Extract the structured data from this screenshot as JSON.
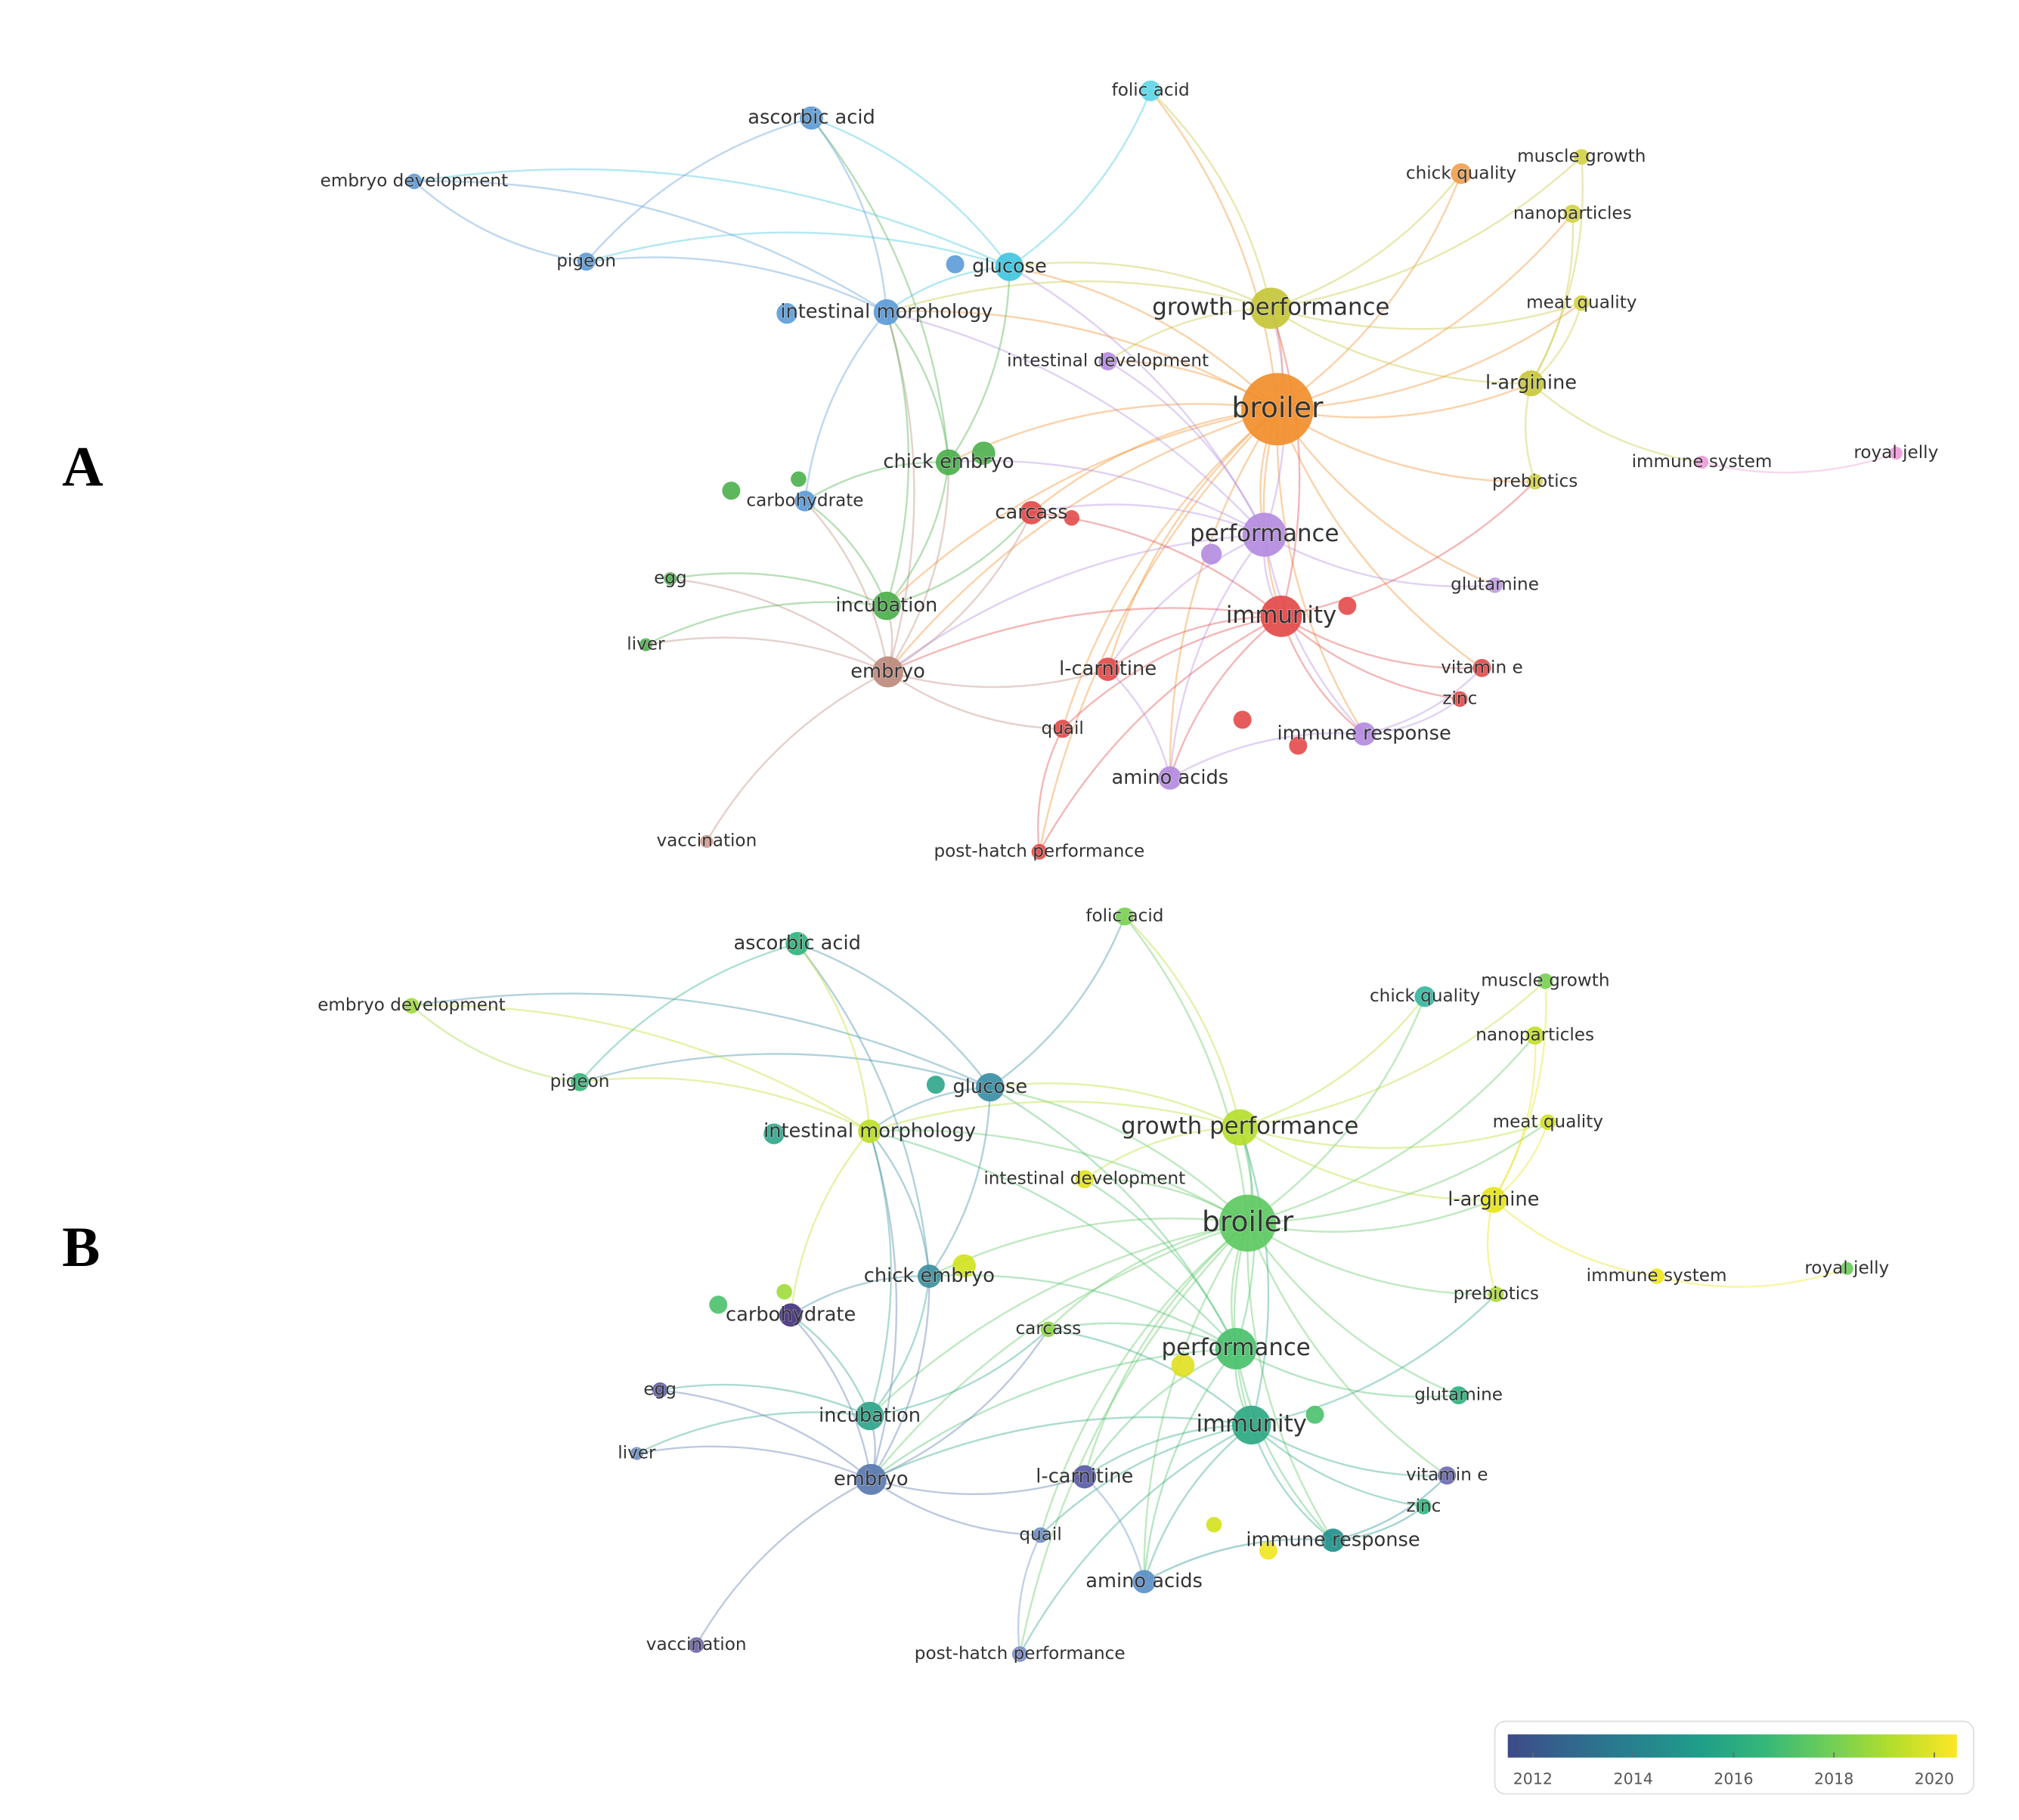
{
  "panels": [
    {
      "label": "A",
      "node_colors": [
        "#f28e2b",
        "#b48be0",
        "#e34a4a",
        "#c5c53a",
        "#bd8a7d",
        "#4bb04b",
        "#4bb04b",
        "#3fc6df",
        "#5b9bd8",
        "#5b9bd8",
        "#5fd6e8",
        "#5b9bd8",
        "#5b9bd8",
        "#f0a050",
        "#d4d244",
        "#d4d244",
        "#d4d244",
        "#c8c83c",
        "#ee9ad8",
        "#ee9ad8",
        "#d4d244",
        "#c09ae8",
        "#b48be0",
        "#e34a4a",
        "#5b9bd8",
        "#4bb04b",
        "#4bb04b",
        "#e34a4a",
        "#e34a4a",
        "#e34a4a",
        "#e34a4a",
        "#b48be0",
        "#b48be0",
        "#d49a90",
        "#e34a4a"
      ]
    },
    {
      "label": "B",
      "node_colors": [
        "#5ec962",
        "#4ac16d",
        "#2ea882",
        "#b5de2b",
        "#5a78b0",
        "#2ea58a",
        "#3d8fa0",
        "#3b8ea5",
        "#bddf26",
        "#2fb47c",
        "#7ad151",
        "#a0da39",
        "#35b779",
        "#35b7a0",
        "#7ad151",
        "#c2df23",
        "#d2e21b",
        "#e5e419",
        "#f0e51d",
        "#6ccd5a",
        "#addc30",
        "#2db27d",
        "#e2e418",
        "#8fd744",
        "#46337e",
        "#5b5aa0",
        "#6b8fc0",
        "#5a5aa8",
        "#6a6ab0",
        "#2fb47c",
        "#6a8cc0",
        "#21918c",
        "#5b8fc8",
        "#6a62a8",
        "#7a8cc8"
      ]
    }
  ],
  "nodes": [
    "broiler",
    "performance",
    "immunity",
    "growth performance",
    "embryo",
    "incubation",
    "chick embryo",
    "glucose",
    "intestinal morphology",
    "ascorbic acid",
    "folic acid",
    "embryo development",
    "pigeon",
    "chick quality",
    "muscle growth",
    "nanoparticles",
    "meat quality",
    "l-arginine",
    "immune system",
    "royal jelly",
    "prebiotics",
    "glutamine",
    "intestinal development",
    "carcass",
    "carbohydrate",
    "egg",
    "liver",
    "l-carnitine",
    "vitamin e",
    "zinc",
    "quail",
    "immune response",
    "amino acids",
    "vaccination",
    "post-hatch performance"
  ],
  "legend": {
    "range": [
      2011.5,
      2020.45
    ],
    "ticks": [
      2012,
      2014,
      2016,
      2018,
      2020
    ],
    "colors": [
      "#3e4a89",
      "#31688e",
      "#26828e",
      "#1f9e89",
      "#35b779",
      "#6ece58",
      "#b5de2b",
      "#fde725"
    ]
  }
}
